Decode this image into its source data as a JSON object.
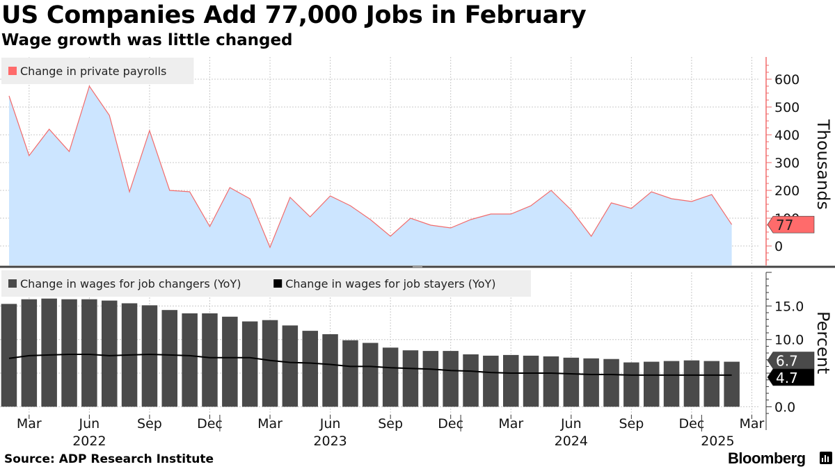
{
  "header": {
    "title": "US Companies Add 77,000 Jobs in February",
    "subtitle": "Wage growth was little changed"
  },
  "footer": {
    "source": "Source: ADP Research Institute",
    "brand": "Bloomberg"
  },
  "colors": {
    "payroll_line": "#f26b6b",
    "payroll_fill": "#cce5ff",
    "payroll_label": "#ff6b6b",
    "wage_changers": "#4a4a4a",
    "wage_stayers": "#000000",
    "legend_bg": "#eeeeee",
    "grid": "#c8c8c8",
    "divider": "#444444"
  },
  "chart_data": [
    {
      "type": "area",
      "panel": "top",
      "legend": [
        "Change in private payrolls"
      ],
      "ylabel": "Thousands",
      "ylim": [
        -70,
        680
      ],
      "yticks": [
        0,
        100,
        200,
        300,
        400,
        500,
        600
      ],
      "x_tick_labels": [
        "Mar",
        "Jun",
        "Sep",
        "Dec",
        "Mar",
        "Jun",
        "Sep",
        "Dec",
        "Mar",
        "Jun",
        "Sep",
        "Dec",
        "Mar"
      ],
      "year_labels": [
        "2022",
        "2023",
        "2024",
        "2025"
      ],
      "grid": true,
      "legend_placement": "top-left",
      "last_value_label": "77",
      "series": [
        {
          "name": "Change in private payrolls",
          "x": [
            "2022-02",
            "2022-03",
            "2022-04",
            "2022-05",
            "2022-06",
            "2022-07",
            "2022-08",
            "2022-09",
            "2022-10",
            "2022-11",
            "2022-12",
            "2023-01",
            "2023-02",
            "2023-03",
            "2023-04",
            "2023-05",
            "2023-06",
            "2023-07",
            "2023-08",
            "2023-09",
            "2023-10",
            "2023-11",
            "2023-12",
            "2024-01",
            "2024-02",
            "2024-03",
            "2024-04",
            "2024-05",
            "2024-06",
            "2024-07",
            "2024-08",
            "2024-09",
            "2024-10",
            "2024-11",
            "2024-12",
            "2025-01",
            "2025-02"
          ],
          "values": [
            540,
            325,
            420,
            340,
            575,
            470,
            195,
            415,
            200,
            195,
            70,
            210,
            170,
            -5,
            175,
            105,
            180,
            145,
            95,
            35,
            100,
            75,
            65,
            95,
            115,
            115,
            145,
            200,
            130,
            35,
            155,
            135,
            195,
            170,
            160,
            185,
            77
          ]
        }
      ]
    },
    {
      "type": "bar",
      "panel": "bottom",
      "legend": [
        "Change in wages for job changers (YoY)",
        "Change in wages for job stayers (YoY)"
      ],
      "ylabel": "Percent",
      "ylim": [
        -1.2,
        20
      ],
      "yticks": [
        0,
        5,
        10,
        15
      ],
      "ytick_labels": [
        "0.0",
        "5.0",
        "10.0",
        "15.0"
      ],
      "grid": true,
      "legend_placement": "top-left",
      "last_value_labels": [
        "6.7",
        "4.7"
      ],
      "series": [
        {
          "name": "Change in wages for job changers (YoY)",
          "type": "bar",
          "x": [
            "2022-02",
            "2022-03",
            "2022-04",
            "2022-05",
            "2022-06",
            "2022-07",
            "2022-08",
            "2022-09",
            "2022-10",
            "2022-11",
            "2022-12",
            "2023-01",
            "2023-02",
            "2023-03",
            "2023-04",
            "2023-05",
            "2023-06",
            "2023-07",
            "2023-08",
            "2023-09",
            "2023-10",
            "2023-11",
            "2023-12",
            "2024-01",
            "2024-02",
            "2024-03",
            "2024-04",
            "2024-05",
            "2024-06",
            "2024-07",
            "2024-08",
            "2024-09",
            "2024-10",
            "2024-11",
            "2024-12",
            "2025-01",
            "2025-02"
          ],
          "values": [
            15.3,
            16.0,
            16.1,
            16.0,
            16.0,
            15.8,
            15.4,
            15.1,
            14.4,
            13.9,
            13.9,
            13.4,
            12.7,
            12.9,
            12.1,
            11.3,
            10.8,
            9.9,
            9.5,
            8.8,
            8.4,
            8.3,
            8.3,
            7.8,
            7.6,
            7.7,
            7.6,
            7.5,
            7.3,
            7.2,
            7.1,
            6.6,
            6.7,
            6.8,
            6.9,
            6.8,
            6.7
          ]
        },
        {
          "name": "Change in wages for job stayers (YoY)",
          "type": "line",
          "x": [
            "2022-02",
            "2022-03",
            "2022-04",
            "2022-05",
            "2022-06",
            "2022-07",
            "2022-08",
            "2022-09",
            "2022-10",
            "2022-11",
            "2022-12",
            "2023-01",
            "2023-02",
            "2023-03",
            "2023-04",
            "2023-05",
            "2023-06",
            "2023-07",
            "2023-08",
            "2023-09",
            "2023-10",
            "2023-11",
            "2023-12",
            "2024-01",
            "2024-02",
            "2024-03",
            "2024-04",
            "2024-05",
            "2024-06",
            "2024-07",
            "2024-08",
            "2024-09",
            "2024-10",
            "2024-11",
            "2024-12",
            "2025-01",
            "2025-02"
          ],
          "values": [
            7.2,
            7.6,
            7.7,
            7.8,
            7.8,
            7.6,
            7.7,
            7.8,
            7.7,
            7.6,
            7.3,
            7.3,
            7.3,
            6.9,
            6.6,
            6.5,
            6.3,
            6.0,
            6.0,
            5.8,
            5.7,
            5.6,
            5.4,
            5.3,
            5.1,
            5.0,
            5.0,
            5.0,
            4.9,
            4.8,
            4.8,
            4.7,
            4.7,
            4.7,
            4.7,
            4.7,
            4.7
          ]
        }
      ]
    }
  ]
}
